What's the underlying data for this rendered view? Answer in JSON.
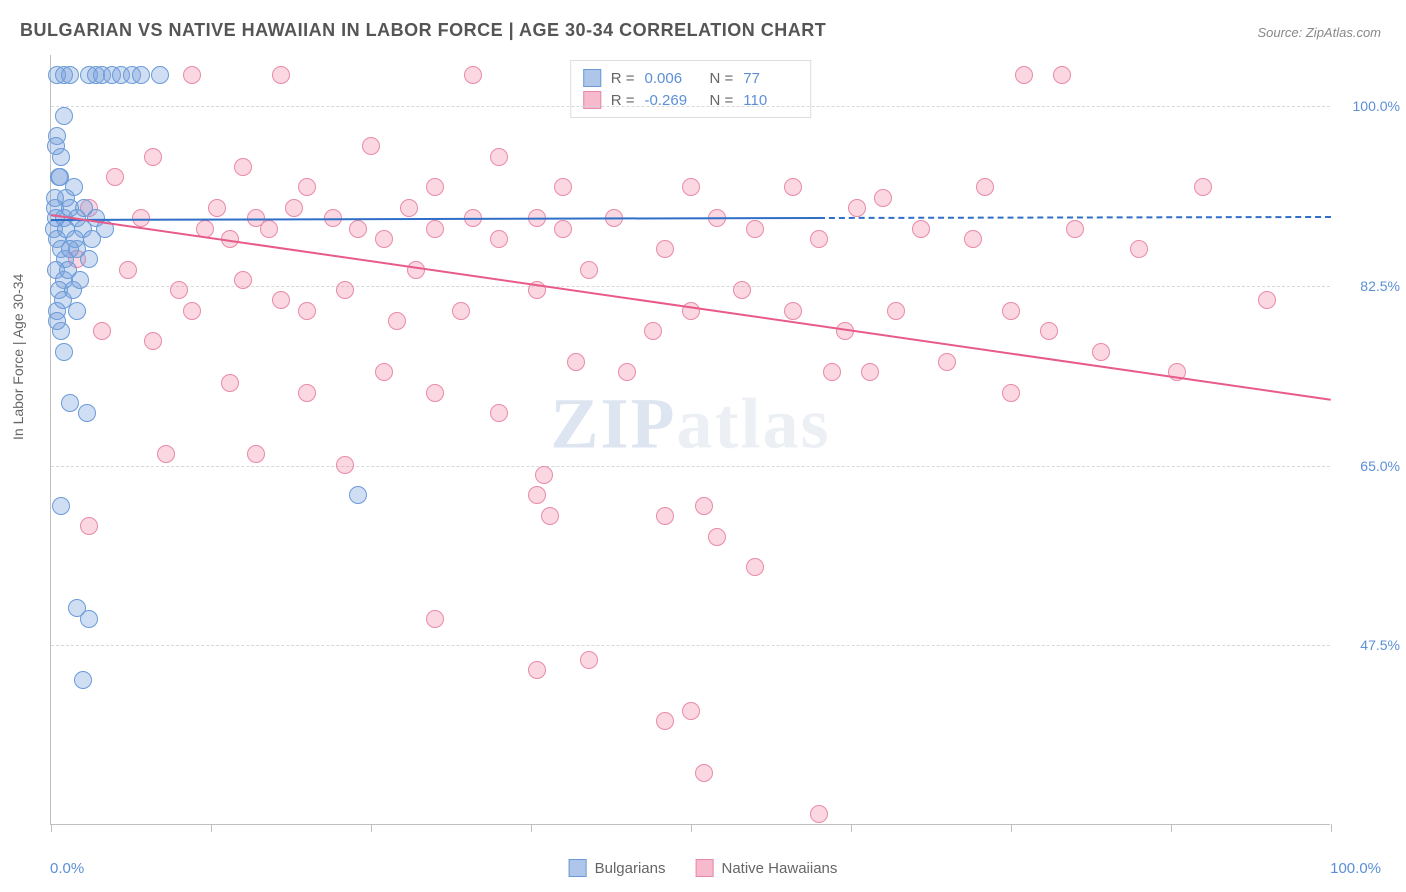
{
  "title": "BULGARIAN VS NATIVE HAWAIIAN IN LABOR FORCE | AGE 30-34 CORRELATION CHART",
  "source": "Source: ZipAtlas.com",
  "y_axis_label": "In Labor Force | Age 30-34",
  "watermark_a": "ZIP",
  "watermark_b": "atlas",
  "chart": {
    "type": "scatter",
    "background_color": "#ffffff",
    "grid_color": "#d8d8d8",
    "axis_color": "#c0c0c0",
    "tick_label_color": "#5b8fd6",
    "xlim": [
      0,
      100
    ],
    "ylim": [
      30,
      105
    ],
    "x_min_label": "0.0%",
    "x_max_label": "100.0%",
    "y_ticks": [
      47.5,
      65.0,
      82.5,
      100.0
    ],
    "y_tick_labels": [
      "47.5%",
      "65.0%",
      "82.5%",
      "100.0%"
    ],
    "x_tick_positions": [
      0,
      12.5,
      25,
      37.5,
      50,
      62.5,
      75,
      87.5,
      100
    ],
    "marker_radius": 9,
    "series": [
      {
        "name": "Bulgarians",
        "color_fill": "rgba(120,160,220,0.35)",
        "color_stroke": "#6a9bd8",
        "trend_color": "#2f6fc7",
        "R": "0.006",
        "N": "77",
        "trend": {
          "x1": 0,
          "y1": 89.0,
          "x2": 60,
          "y2": 89.2,
          "dash_from_x": 60,
          "x_end": 100,
          "y_end": 89.3
        },
        "points": [
          [
            0.5,
            103
          ],
          [
            1,
            103
          ],
          [
            1.5,
            103
          ],
          [
            3,
            103
          ],
          [
            3.5,
            103
          ],
          [
            4,
            103
          ],
          [
            4.8,
            103
          ],
          [
            5.5,
            103
          ],
          [
            6.3,
            103
          ],
          [
            7,
            103
          ],
          [
            8.5,
            103
          ],
          [
            0.5,
            97
          ],
          [
            0.8,
            95
          ],
          [
            1,
            99
          ],
          [
            0.6,
            93
          ],
          [
            1.2,
            91
          ],
          [
            0.4,
            96
          ],
          [
            1.8,
            92
          ],
          [
            0.3,
            90
          ],
          [
            1,
            89
          ],
          [
            0.2,
            88
          ],
          [
            0.5,
            87
          ],
          [
            1.5,
            90
          ],
          [
            2,
            89
          ],
          [
            0.8,
            86
          ],
          [
            1.1,
            85
          ],
          [
            2.5,
            88
          ],
          [
            3.2,
            87
          ],
          [
            0.4,
            84
          ],
          [
            1,
            83
          ],
          [
            0.6,
            82
          ],
          [
            2,
            86
          ],
          [
            1.3,
            84
          ],
          [
            0.9,
            81
          ],
          [
            3,
            85
          ],
          [
            0.5,
            80
          ],
          [
            1.7,
            82
          ],
          [
            2.3,
            83
          ],
          [
            1.2,
            88
          ],
          [
            0.3,
            91
          ],
          [
            0.7,
            93
          ],
          [
            1.9,
            87
          ],
          [
            2.6,
            90
          ],
          [
            0.4,
            89
          ],
          [
            1.5,
            86
          ],
          [
            3.5,
            89
          ],
          [
            4.2,
            88
          ],
          [
            0.8,
            78
          ],
          [
            1,
            76
          ],
          [
            0.5,
            79
          ],
          [
            2,
            80
          ],
          [
            1.5,
            71
          ],
          [
            2.8,
            70
          ],
          [
            0.8,
            61
          ],
          [
            24,
            62
          ],
          [
            2,
            51
          ],
          [
            3,
            50
          ],
          [
            2.5,
            44
          ]
        ]
      },
      {
        "name": "Native Hawaiians",
        "color_fill": "rgba(240,140,170,0.35)",
        "color_stroke": "#e88aa8",
        "trend_color": "#e85a8a",
        "R": "-0.269",
        "N": "110",
        "trend": {
          "x1": 0,
          "y1": 89.5,
          "x2": 100,
          "y2": 71.5
        },
        "points": [
          [
            11,
            103
          ],
          [
            18,
            103
          ],
          [
            33,
            103
          ],
          [
            76,
            103
          ],
          [
            79,
            103
          ],
          [
            8,
            95
          ],
          [
            15,
            94
          ],
          [
            5,
            93
          ],
          [
            20,
            92
          ],
          [
            25,
            96
          ],
          [
            30,
            92
          ],
          [
            35,
            95
          ],
          [
            40,
            92
          ],
          [
            50,
            92
          ],
          [
            58,
            92
          ],
          [
            65,
            91
          ],
          [
            73,
            92
          ],
          [
            90,
            92
          ],
          [
            3,
            90
          ],
          [
            7,
            89
          ],
          [
            12,
            88
          ],
          [
            13,
            90
          ],
          [
            14,
            87
          ],
          [
            16,
            89
          ],
          [
            17,
            88
          ],
          [
            19,
            90
          ],
          [
            22,
            89
          ],
          [
            24,
            88
          ],
          [
            26,
            87
          ],
          [
            28,
            90
          ],
          [
            30,
            88
          ],
          [
            33,
            89
          ],
          [
            35,
            87
          ],
          [
            38,
            89
          ],
          [
            40,
            88
          ],
          [
            44,
            89
          ],
          [
            48,
            86
          ],
          [
            52,
            89
          ],
          [
            55,
            88
          ],
          [
            60,
            87
          ],
          [
            63,
            90
          ],
          [
            68,
            88
          ],
          [
            72,
            87
          ],
          [
            75,
            80
          ],
          [
            80,
            88
          ],
          [
            85,
            86
          ],
          [
            95,
            81
          ],
          [
            2,
            85
          ],
          [
            6,
            84
          ],
          [
            10,
            82
          ],
          [
            11,
            80
          ],
          [
            15,
            83
          ],
          [
            18,
            81
          ],
          [
            20,
            80
          ],
          [
            23,
            82
          ],
          [
            27,
            79
          ],
          [
            28.5,
            84
          ],
          [
            32,
            80
          ],
          [
            38,
            82
          ],
          [
            42,
            84
          ],
          [
            45,
            74
          ],
          [
            47,
            78
          ],
          [
            50,
            80
          ],
          [
            54,
            82
          ],
          [
            58,
            80
          ],
          [
            62,
            78
          ],
          [
            66,
            80
          ],
          [
            70,
            75
          ],
          [
            75,
            72
          ],
          [
            78,
            78
          ],
          [
            82,
            76
          ],
          [
            88,
            74
          ],
          [
            4,
            78
          ],
          [
            8,
            77
          ],
          [
            14,
            73
          ],
          [
            20,
            72
          ],
          [
            26,
            74
          ],
          [
            30,
            72
          ],
          [
            35,
            70
          ],
          [
            41,
            75
          ],
          [
            61,
            74
          ],
          [
            64,
            74
          ],
          [
            9,
            66
          ],
          [
            16,
            66
          ],
          [
            23,
            65
          ],
          [
            38,
            62
          ],
          [
            38.5,
            64
          ],
          [
            39,
            60
          ],
          [
            48,
            60
          ],
          [
            51,
            61
          ],
          [
            52,
            58
          ],
          [
            55,
            55
          ],
          [
            3,
            59
          ],
          [
            30,
            50
          ],
          [
            50,
            41
          ],
          [
            38,
            45
          ],
          [
            42,
            46
          ],
          [
            48,
            40
          ],
          [
            60,
            31
          ],
          [
            51,
            35
          ]
        ]
      }
    ]
  },
  "bottom_legend": {
    "items": [
      {
        "label": "Bulgarians",
        "fill": "rgba(120,160,220,0.6)",
        "stroke": "#6a9bd8"
      },
      {
        "label": "Native Hawaiians",
        "fill": "rgba(240,140,170,0.6)",
        "stroke": "#e88aa8"
      }
    ]
  }
}
